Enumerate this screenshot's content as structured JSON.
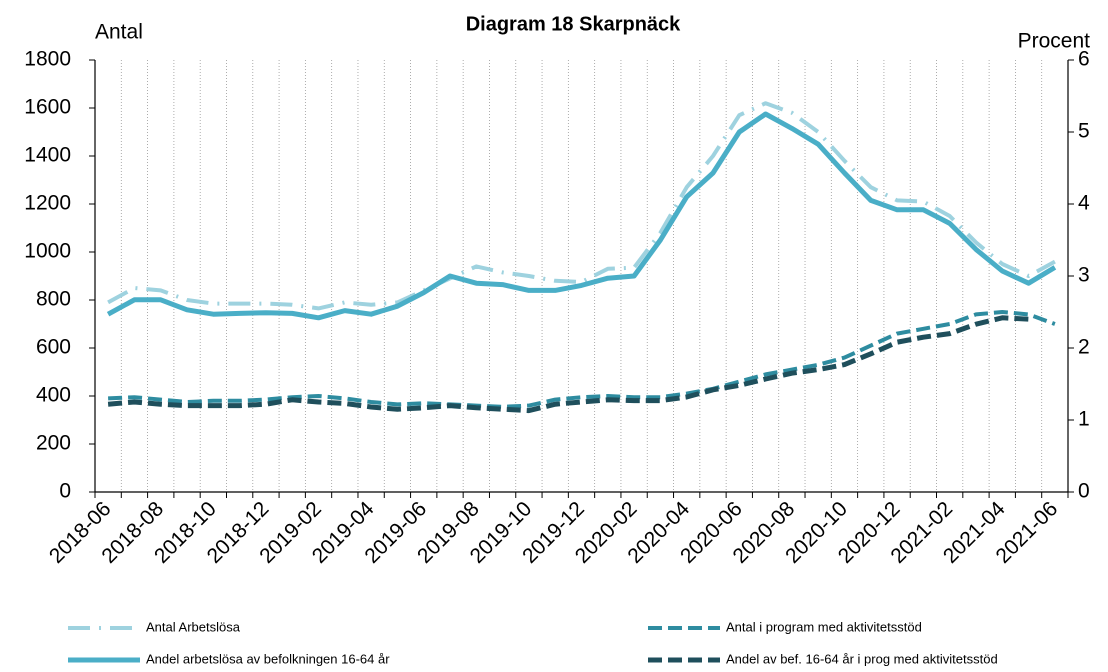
{
  "chart_data": {
    "type": "line",
    "title": "Diagram 18 Skarpnäck",
    "y_label": "Antal",
    "y2_label": "Procent",
    "categories": [
      "2018-06",
      null,
      "2018-08",
      null,
      "2018-10",
      null,
      "2018-12",
      null,
      "2019-02",
      null,
      "2019-04",
      null,
      "2019-06",
      null,
      "2019-08",
      null,
      "2019-10",
      null,
      "2019-12",
      null,
      "2020-02",
      null,
      "2020-04",
      null,
      "2020-06",
      null,
      "2020-08",
      null,
      "2020-10",
      null,
      "2020-12",
      null,
      "2021-02",
      null,
      "2021-04",
      null,
      "2021-06"
    ],
    "ylim": [
      0,
      1800
    ],
    "yticks": [
      0,
      200,
      400,
      600,
      800,
      1000,
      1200,
      1400,
      1600,
      1800
    ],
    "y2lim": [
      0,
      6
    ],
    "y2ticks": [
      0,
      1,
      2,
      3,
      4,
      5,
      6
    ],
    "grid": "x",
    "legend": "bottom",
    "series": [
      {
        "name": "Antal Arbetslösa",
        "color": "#9ed2df",
        "style": "dashdot",
        "width": 4,
        "values": [
          790,
          850,
          840,
          800,
          785,
          785,
          785,
          780,
          765,
          790,
          780,
          790,
          840,
          890,
          940,
          915,
          900,
          880,
          875,
          930,
          935,
          1080,
          1270,
          1400,
          1570,
          1620,
          1580,
          1500,
          1380,
          1270,
          1215,
          1210,
          1150,
          1040,
          950,
          900,
          960
        ]
      },
      {
        "name": "Antal i program med aktivitetsstöd",
        "color": "#2e8ca0",
        "style": "dashed",
        "width": 4,
        "values": [
          390,
          395,
          385,
          375,
          380,
          380,
          385,
          395,
          400,
          390,
          375,
          365,
          370,
          365,
          360,
          355,
          360,
          385,
          395,
          400,
          395,
          395,
          410,
          430,
          460,
          490,
          510,
          530,
          560,
          610,
          660,
          680,
          700,
          740,
          750,
          740,
          700
        ]
      },
      {
        "name": "Andel arbetslösa av befolkningen 16-64 år",
        "color": "#4aaec7",
        "style": "solid",
        "width": 5,
        "axis": "y2",
        "values": [
          2.47,
          2.67,
          2.67,
          2.53,
          2.47,
          2.48,
          2.49,
          2.48,
          2.42,
          2.52,
          2.47,
          2.58,
          2.77,
          3.0,
          2.9,
          2.88,
          2.8,
          2.8,
          2.87,
          2.97,
          3.0,
          3.5,
          4.1,
          4.43,
          5.0,
          5.25,
          5.05,
          4.83,
          4.43,
          4.05,
          3.92,
          3.92,
          3.73,
          3.37,
          3.07,
          2.9,
          3.12
        ]
      },
      {
        "name": "Andel av bef. 16-64 år i prog med aktivitetsstöd",
        "color": "#1f4f5c",
        "style": "dashed",
        "width": 5,
        "axis": "y2",
        "values": [
          1.22,
          1.25,
          1.22,
          1.2,
          1.2,
          1.2,
          1.22,
          1.28,
          1.25,
          1.23,
          1.18,
          1.15,
          1.17,
          1.2,
          1.17,
          1.15,
          1.13,
          1.22,
          1.25,
          1.28,
          1.27,
          1.27,
          1.32,
          1.42,
          1.48,
          1.57,
          1.65,
          1.7,
          1.77,
          1.92,
          2.08,
          2.15,
          2.2,
          2.33,
          2.42,
          2.4,
          null
        ]
      }
    ]
  }
}
